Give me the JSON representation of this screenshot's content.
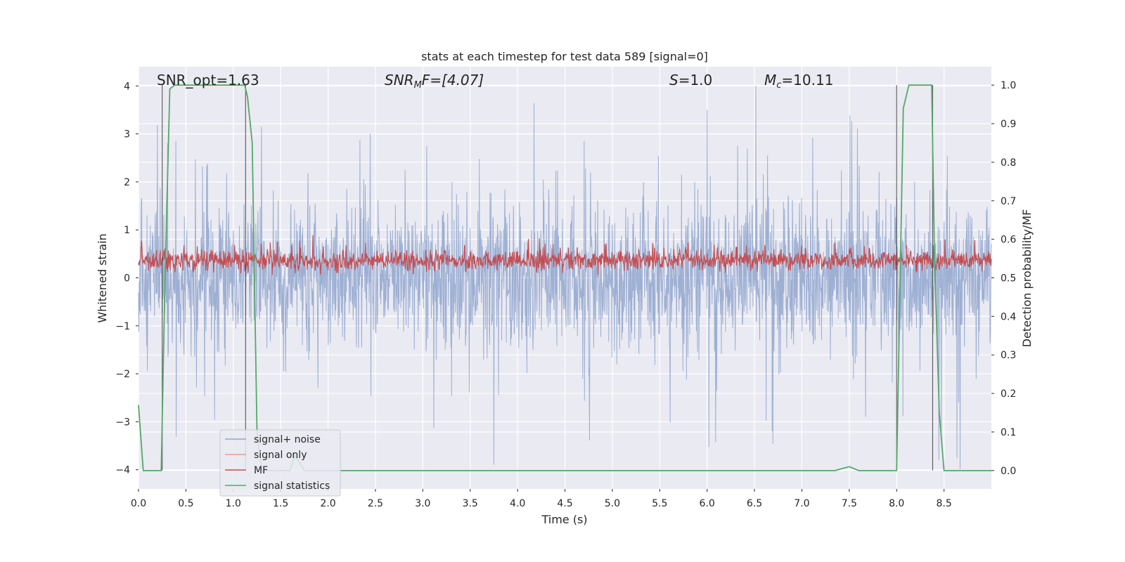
{
  "chart_data": {
    "type": "line",
    "title": "stats at each timestep for test data 589 [signal=0]",
    "xlabel": "Time (s)",
    "ylabel": "Whitened strain",
    "y2label": "Detection probability/MF",
    "xlim": [
      0.0,
      9.0
    ],
    "ylim": [
      -4.4,
      4.4
    ],
    "y2lim": [
      -0.0478,
      1.0478
    ],
    "grid": true,
    "legend_position": "lower-left",
    "x_ticks": [
      "0.0",
      "0.5",
      "1.0",
      "1.5",
      "2.0",
      "2.5",
      "3.0",
      "3.5",
      "4.0",
      "4.5",
      "5.0",
      "5.5",
      "6.0",
      "6.5",
      "7.0",
      "7.5",
      "8.0",
      "8.5"
    ],
    "y_ticks": [
      "−4",
      "−3",
      "−2",
      "−1",
      "0",
      "1",
      "2",
      "3",
      "4"
    ],
    "y2_ticks": [
      "0.0",
      "0.1",
      "0.2",
      "0.3",
      "0.4",
      "0.5",
      "0.6",
      "0.7",
      "0.8",
      "0.9",
      "1.0"
    ],
    "annotations": [
      {
        "id": "snr-opt",
        "text": "SNR_opt=1.63"
      },
      {
        "id": "snr-mf",
        "text": "SNRMF=[4.07]",
        "base": "SNR",
        "sub": "M",
        "rest": "F=[4.07]"
      },
      {
        "id": "s-value",
        "text": "S=1.0",
        "italic": "S",
        "rest": "=1.0"
      },
      {
        "id": "mc-value",
        "text": "Mc=10.11",
        "base": "M",
        "sub": "c",
        "rest": "=10.11"
      }
    ],
    "series": [
      {
        "name": "signal+ noise",
        "color": "#8fa4ce",
        "axis": "left",
        "shape": "noise band approx −2.5 to +3.2, peaks to ±4"
      },
      {
        "name": "signal only",
        "color": "#e8a088",
        "axis": "left",
        "values": []
      },
      {
        "name": "MF",
        "color": "#c44e52",
        "axis": "right",
        "shape": "noisy band approx 0.50–0.63"
      },
      {
        "name": "signal statistics",
        "color": "#55a868",
        "axis": "right",
        "x": [
          0.0,
          0.05,
          0.24,
          0.28,
          0.33,
          0.38,
          0.5,
          1.0,
          1.12,
          1.15,
          1.2,
          1.25,
          1.3,
          1.6,
          1.65,
          1.75,
          2.0,
          7.35,
          7.5,
          7.6,
          8.0,
          8.07,
          8.13,
          8.37,
          8.4,
          8.45,
          8.5,
          9.0
        ],
        "y": [
          0.17,
          0.0,
          0.0,
          0.5,
          0.99,
          1.0,
          1.0,
          1.0,
          1.0,
          0.97,
          0.85,
          0.1,
          0.0,
          0.0,
          0.04,
          0.0,
          0.0,
          0.0,
          0.01,
          0.0,
          0.0,
          0.94,
          1.0,
          1.0,
          0.55,
          0.15,
          0.0,
          0.0
        ]
      }
    ],
    "vlines_x": [
      0.25,
      1.13,
      8.0,
      8.38
    ]
  },
  "colors": {
    "plot_bg": "#eaeaf2",
    "grid": "#ffffff",
    "text": "#262626",
    "vline": "#404040"
  }
}
